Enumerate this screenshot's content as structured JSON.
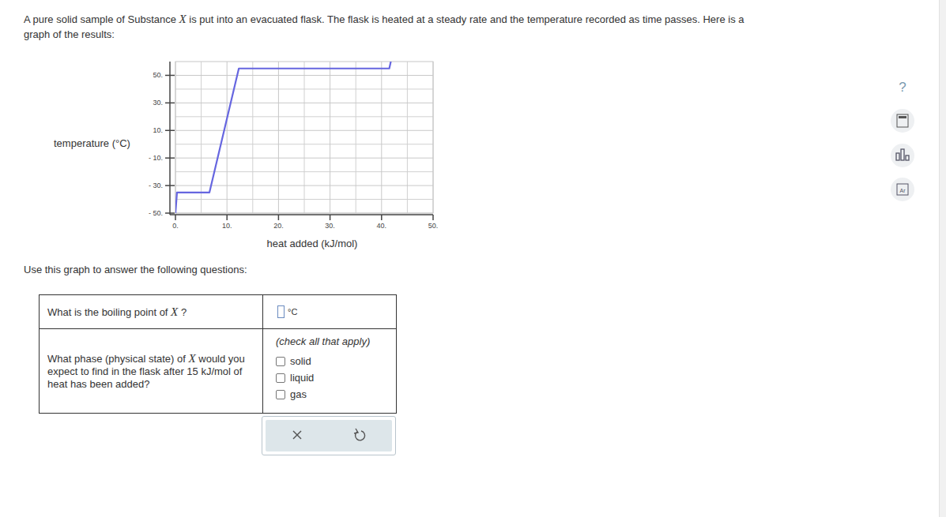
{
  "page": {
    "intro": [
      [
        {
          "text": "A pure solid sample of Substance "
        },
        {
          "text": "X",
          "style": "italic"
        },
        {
          "text": " is put into an evacuated flask. The flask is heated at a steady rate and the temperature recorded as time passes. Here is a"
        }
      ],
      [
        {
          "text": "graph of the results:"
        }
      ]
    ],
    "instruction": "Use this graph to answer the following questions:",
    "questions": [
      {
        "prompt": [
          {
            "text": "What is the boiling point of "
          },
          {
            "text": "X",
            "style": "italic"
          },
          {
            "text": " ?"
          }
        ],
        "unit": "°C"
      },
      {
        "prompt": [
          {
            "text": "What phase (physical state) of "
          },
          {
            "text": "X",
            "style": "italic"
          },
          {
            "text": " would you expect to find in the flask after 15 kJ/mol of heat has been added?"
          }
        ],
        "hint": "(check all that apply)",
        "options": [
          "solid",
          "liquid",
          "gas"
        ]
      }
    ],
    "sidebar": [
      "?",
      "Ar"
    ]
  },
  "chart_data": {
    "type": "line",
    "x_label": "heat added (kJ/mol)",
    "y_label": "temperature (°C)",
    "x": [
      0,
      0.3,
      6.6,
      12.3,
      41.5,
      41.8
    ],
    "values": [
      -50,
      -35,
      -35,
      55,
      55,
      60
    ],
    "color": "#6666e0",
    "xlim": [
      0,
      50
    ],
    "ylim": [
      -50,
      60
    ],
    "xticks": [
      {
        "value": 0,
        "label": "0."
      },
      {
        "value": 10,
        "label": "10."
      },
      {
        "value": 20,
        "label": "20."
      },
      {
        "value": 30,
        "label": "30."
      },
      {
        "value": 40,
        "label": "40."
      },
      {
        "value": 50,
        "label": "50."
      }
    ],
    "yticks": [
      {
        "value": -50,
        "label": "- 50."
      },
      {
        "value": -30,
        "label": "- 30."
      },
      {
        "value": -10,
        "label": "- 10."
      },
      {
        "value": 10,
        "label": "10."
      },
      {
        "value": 30,
        "label": "30."
      },
      {
        "value": 50,
        "label": "50."
      }
    ],
    "grid": true
  }
}
